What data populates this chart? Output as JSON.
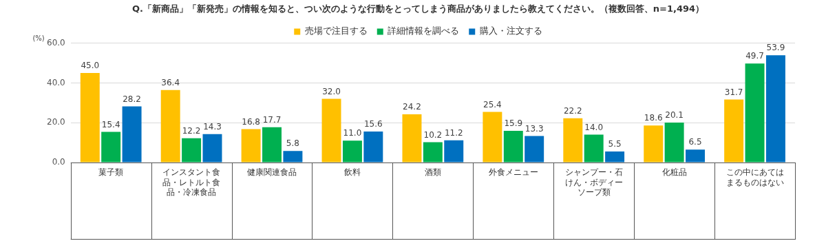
{
  "chart_data": {
    "type": "bar",
    "title": "Q.「新商品」「新発売」の情報を知ると、つい次のような行動をとってしまう商品がありましたら教えてください。（複数回答、n=1,494）",
    "ylabel": "(%)",
    "categories": [
      "菓子類",
      "インスタント食品・レトルト食品・冷凍食品",
      "健康関連食品",
      "飲料",
      "酒類",
      "外食メニュー",
      "シャンプー・石けん・ボディーソープ類",
      "化粧品",
      "この中にあてはまるものはない"
    ],
    "series": [
      {
        "name": "売場で注目する",
        "color": "#ffc000",
        "values": [
          45.0,
          36.4,
          16.8,
          32.0,
          24.2,
          25.4,
          22.2,
          18.6,
          31.7
        ],
        "value_labels": [
          "45.0",
          "36.4",
          "16.8",
          "32.0",
          "24.2",
          "25.4",
          "22.2",
          "18.6",
          "31.7"
        ]
      },
      {
        "name": "詳細情報を調べる",
        "color": "#00b050",
        "values": [
          15.4,
          12.2,
          17.7,
          11.0,
          10.2,
          15.9,
          14.0,
          20.1,
          49.7
        ],
        "value_labels": [
          "15.4",
          "12.2",
          "17.7",
          "11.0",
          "10.2",
          "15.9",
          "14.0",
          "20.1",
          "49.7"
        ]
      },
      {
        "name": "購入・注文する",
        "color": "#0070c0",
        "values": [
          28.2,
          14.3,
          5.8,
          15.6,
          11.2,
          13.3,
          5.5,
          6.5,
          53.9
        ],
        "value_labels": [
          "28.2",
          "14.3",
          "5.8",
          "15.6",
          "11.2",
          "13.3",
          "5.5",
          "6.5",
          "53.9"
        ]
      }
    ],
    "ylim": [
      0,
      60
    ],
    "yticks": [
      {
        "value": 0,
        "label": "0.0"
      },
      {
        "value": 20,
        "label": "20.0"
      },
      {
        "value": 40,
        "label": "40.0"
      },
      {
        "value": 60,
        "label": "60.0"
      }
    ],
    "grid": "y",
    "legend": "top"
  }
}
